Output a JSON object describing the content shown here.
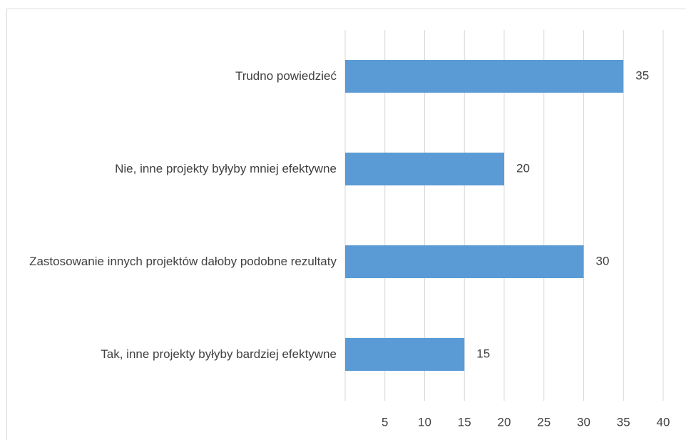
{
  "chart_data": {
    "type": "bar",
    "orientation": "horizontal",
    "categories": [
      "Trudno powiedzieć",
      "Nie, inne projekty byłyby mniej efektywne",
      "Zastosowanie innych projektów dałoby podobne rezultaty",
      "Tak, inne projekty byłyby bardziej efektywne"
    ],
    "values": [
      35,
      20,
      30,
      15
    ],
    "color": "#5b9bd5",
    "xlim": [
      0,
      40
    ],
    "xticks": [
      5,
      10,
      15,
      20,
      25,
      30,
      35,
      40
    ],
    "grid": true
  }
}
